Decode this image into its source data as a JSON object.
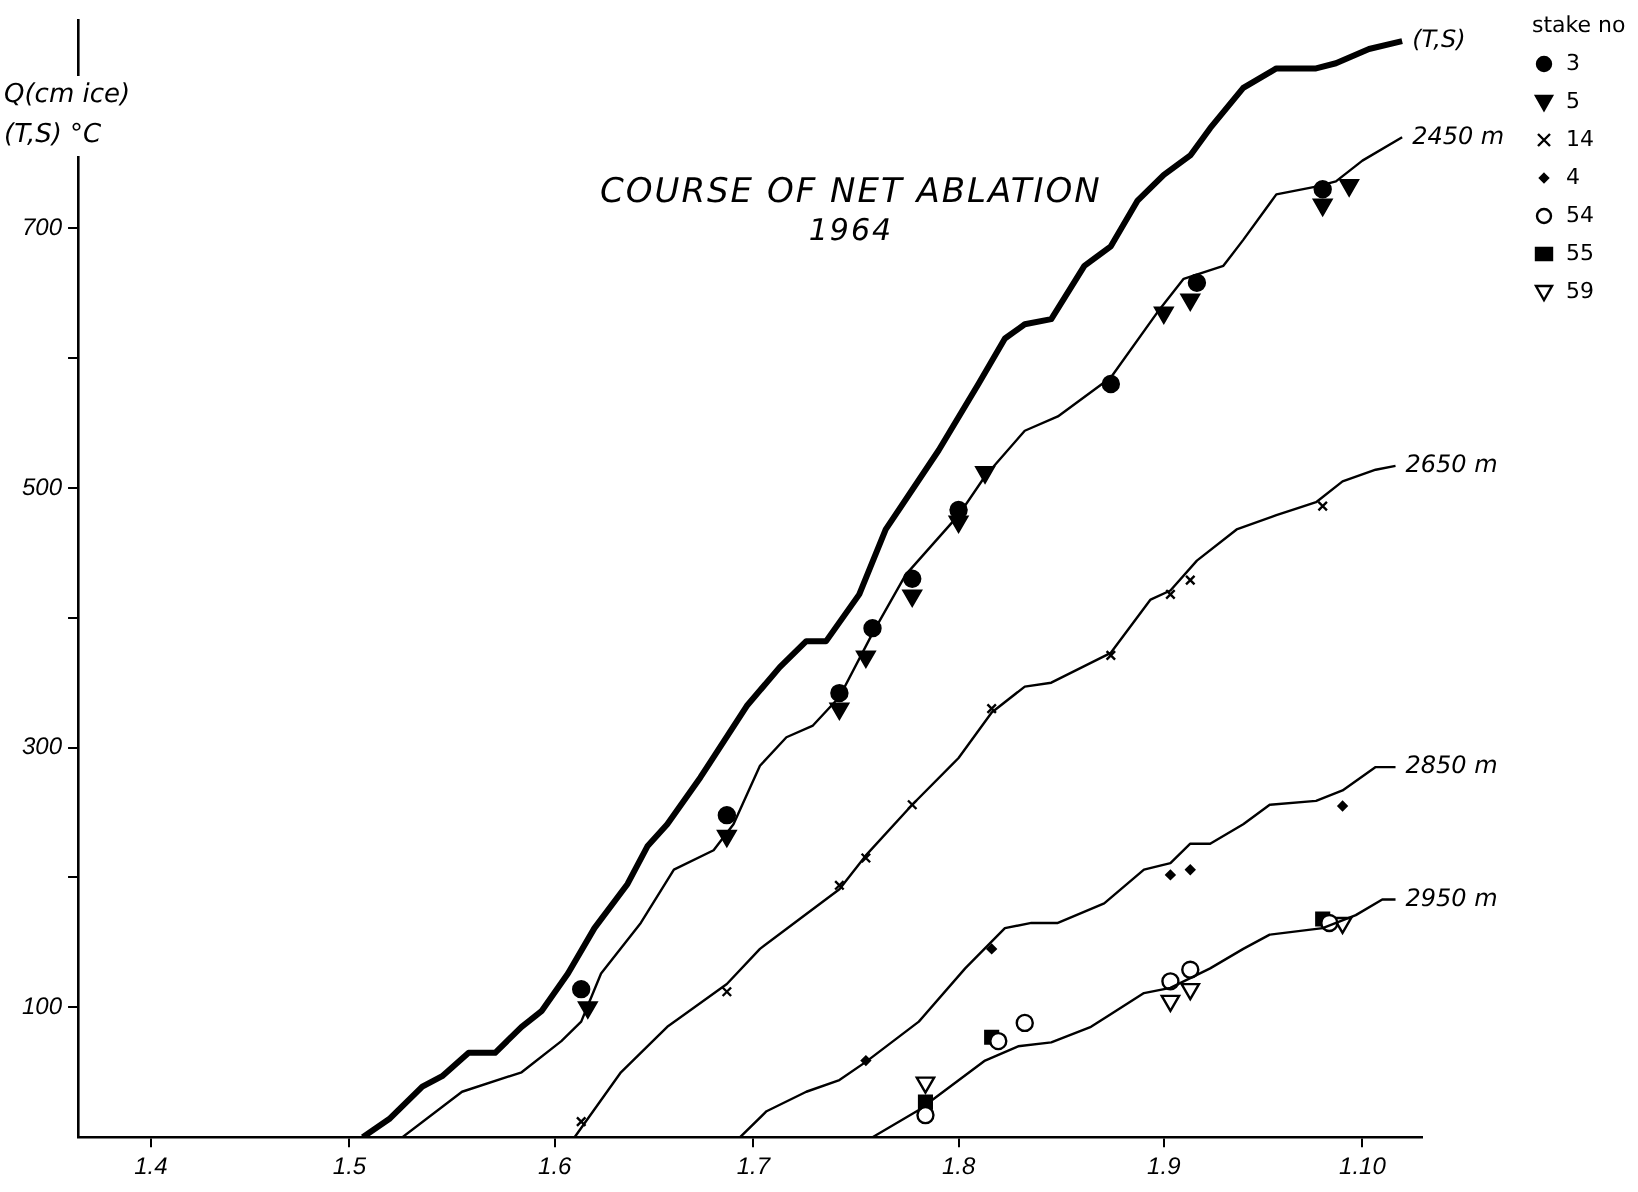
{
  "chart_data": {
    "type": "line",
    "title": "COURSE OF NET ABLATION",
    "subtitle": "1964",
    "ylabel": "Q(cm ice)\n(T,S) °C",
    "legend_title": "stake no",
    "legend": "right",
    "grid": false,
    "xlim": [
      "--03-21",
      "--10-10"
    ],
    "xticks": [
      {
        "value": "--04-01",
        "label": "1.4"
      },
      {
        "value": "--05-01",
        "label": "1.5"
      },
      {
        "value": "--06-01",
        "label": "1.6"
      },
      {
        "value": "--07-01",
        "label": "1.7"
      },
      {
        "value": "--08-01",
        "label": "1.8"
      },
      {
        "value": "--09-01",
        "label": "1.9"
      },
      {
        "value": "--10-01",
        "label": "1.10"
      }
    ],
    "ylim": [
      0,
      860
    ],
    "yticks": [
      100,
      {
        "value": 200,
        "label": null
      },
      300,
      {
        "value": 400,
        "label": null
      },
      500,
      {
        "value": 600,
        "label": null
      },
      700
    ],
    "series": [
      {
        "name": "(T,S)",
        "color": "#000000",
        "line_style": "solid",
        "marker": "none",
        "x": [
          "--05-03",
          "--05-07",
          "--05-12",
          "--05-15",
          "--05-19",
          "--05-23",
          "--05-27",
          "--05-30",
          "--06-03",
          "--06-07",
          "--06-12",
          "--06-15",
          "--06-18",
          "--06-23",
          "--06-30",
          "--07-05",
          "--07-09",
          "--07-12",
          "--07-17",
          "--07-21",
          "--07-29",
          "--08-04",
          "--08-08",
          "--08-11",
          "--08-15",
          "--08-20",
          "--08-24",
          "--08-28",
          "--09-01",
          "--09-05",
          "--09-08",
          "--09-13",
          "--09-18",
          "--09-24",
          "--09-27",
          "--10-02",
          "--10-07"
        ],
        "values": [
          0,
          14,
          39,
          47,
          65,
          65,
          85,
          97,
          126,
          161,
          195,
          224,
          241,
          277,
          332,
          362,
          382,
          382,
          418,
          468,
          529,
          580,
          615,
          626,
          630,
          671,
          686,
          721,
          741,
          756,
          777,
          808,
          823,
          823,
          827,
          838,
          844
        ]
      },
      {
        "name": "2450 m",
        "color": "#000000",
        "line_style": "solid",
        "marker": "none",
        "x": [
          "--05-09",
          "--05-18",
          "--05-27",
          "--06-02",
          "--06-05",
          "--06-08",
          "--06-14",
          "--06-19",
          "--06-25",
          "--06-28",
          "--07-02",
          "--07-06",
          "--07-10",
          "--07-14",
          "--07-19",
          "--07-24",
          "--08-01",
          "--08-05",
          "--08-11",
          "--08-16",
          "--08-20",
          "--08-24",
          "--08-31",
          "--09-04",
          "--09-10",
          "--09-13",
          "--09-18",
          "--09-24",
          "--09-27",
          "--10-01",
          "--10-07"
        ],
        "values": [
          0,
          35,
          50,
          74,
          89,
          126,
          165,
          206,
          221,
          241,
          286,
          308,
          317,
          339,
          388,
          433,
          479,
          509,
          544,
          555,
          570,
          585,
          635,
          661,
          671,
          691,
          726,
          732,
          736,
          752,
          770
        ]
      },
      {
        "name": "2650 m",
        "color": "#000000",
        "line_style": "solid",
        "marker": "none",
        "x": [
          "--06-04",
          "--06-11",
          "--06-18",
          "--06-27",
          "--07-02",
          "--07-08",
          "--07-14",
          "--07-18",
          "--07-25",
          "--08-01",
          "--08-06",
          "--08-11",
          "--08-15",
          "--08-24",
          "--08-30",
          "--09-02",
          "--09-06",
          "--09-12",
          "--09-18",
          "--09-24",
          "--09-28",
          "--10-03",
          "--10-06"
        ],
        "values": [
          0,
          50,
          85,
          118,
          145,
          168,
          191,
          217,
          256,
          292,
          327,
          347,
          350,
          373,
          414,
          421,
          444,
          468,
          479,
          489,
          505,
          514,
          517
        ]
      },
      {
        "name": "2850 m",
        "color": "#000000",
        "line_style": "solid",
        "marker": "none",
        "x": [
          "--06-29",
          "--07-03",
          "--07-09",
          "--07-14",
          "--07-18",
          "--07-26",
          "--08-02",
          "--08-08",
          "--08-12",
          "--08-16",
          "--08-23",
          "--08-29",
          "--09-02",
          "--09-05",
          "--09-08",
          "--09-13",
          "--09-17",
          "--09-24",
          "--09-28",
          "--10-03",
          "--10-06"
        ],
        "values": [
          0,
          20,
          35,
          44,
          58,
          89,
          130,
          161,
          165,
          165,
          180,
          206,
          211,
          226,
          226,
          241,
          256,
          259,
          267,
          285,
          285
        ]
      },
      {
        "name": "2950 m",
        "color": "#000000",
        "line_style": "solid",
        "marker": "none",
        "x": [
          "--07-19",
          "--07-26",
          "--08-05",
          "--08-10",
          "--08-15",
          "--08-21",
          "--08-29",
          "--09-02",
          "--09-08",
          "--09-13",
          "--09-17",
          "--09-25",
          "--09-30",
          "--10-04",
          "--10-06"
        ],
        "values": [
          0,
          21,
          59,
          70,
          73,
          85,
          111,
          115,
          130,
          145,
          156,
          161,
          171,
          183,
          183
        ]
      },
      {
        "type": "scatter",
        "name": "3",
        "color": "#000000",
        "marker": "circle",
        "x": [
          "--06-05",
          "--06-27",
          "--07-14",
          "--07-19",
          "--07-25",
          "--08-01",
          "--08-24",
          "--09-06",
          "--09-25"
        ],
        "values": [
          114,
          248,
          342,
          392,
          430,
          483,
          580,
          658,
          730
        ]
      },
      {
        "type": "scatter",
        "name": "5",
        "color": "#000000",
        "marker": "triangle",
        "x": [
          "--06-06",
          "--06-27",
          "--07-14",
          "--07-18",
          "--07-25",
          "--08-01",
          "--08-05",
          "--09-01",
          "--09-05",
          "--09-25",
          "--09-29"
        ],
        "values": [
          100,
          232,
          330,
          370,
          417,
          474,
          512,
          635,
          645,
          718,
          733
        ]
      },
      {
        "type": "scatter",
        "name": "14",
        "color": "#000000",
        "marker": "cross",
        "x": [
          "--06-05",
          "--06-27",
          "--07-14",
          "--07-18",
          "--07-25",
          "--08-06",
          "--08-24",
          "--09-02",
          "--09-05",
          "--09-25"
        ],
        "values": [
          12,
          112,
          194,
          215,
          256,
          330,
          371,
          418,
          429,
          486
        ]
      },
      {
        "type": "scatter",
        "name": "4",
        "color": "#000000",
        "marker": "diamond",
        "x": [
          "--07-18",
          "--08-06",
          "--09-02",
          "--09-05",
          "--09-28"
        ],
        "values": [
          59,
          145,
          202,
          206,
          255
        ]
      },
      {
        "type": "scatter",
        "name": "54",
        "color": "#000000",
        "marker": "circle",
        "x": [
          "--07-27",
          "--08-07",
          "--08-11",
          "--09-02",
          "--09-05",
          "--09-26"
        ],
        "values": [
          17,
          74,
          88,
          120,
          129,
          165
        ]
      },
      {
        "type": "scatter",
        "name": "55",
        "color": "#000000",
        "marker": "square",
        "x": [
          "--07-27",
          "--08-06",
          "--09-25"
        ],
        "values": [
          27,
          77,
          168
        ]
      },
      {
        "type": "scatter",
        "name": "59",
        "color": "#000000",
        "marker": "triangle",
        "x": [
          "--07-27",
          "--09-02",
          "--09-05",
          "--09-28"
        ],
        "values": [
          42,
          105,
          114,
          165
        ]
      }
    ]
  }
}
